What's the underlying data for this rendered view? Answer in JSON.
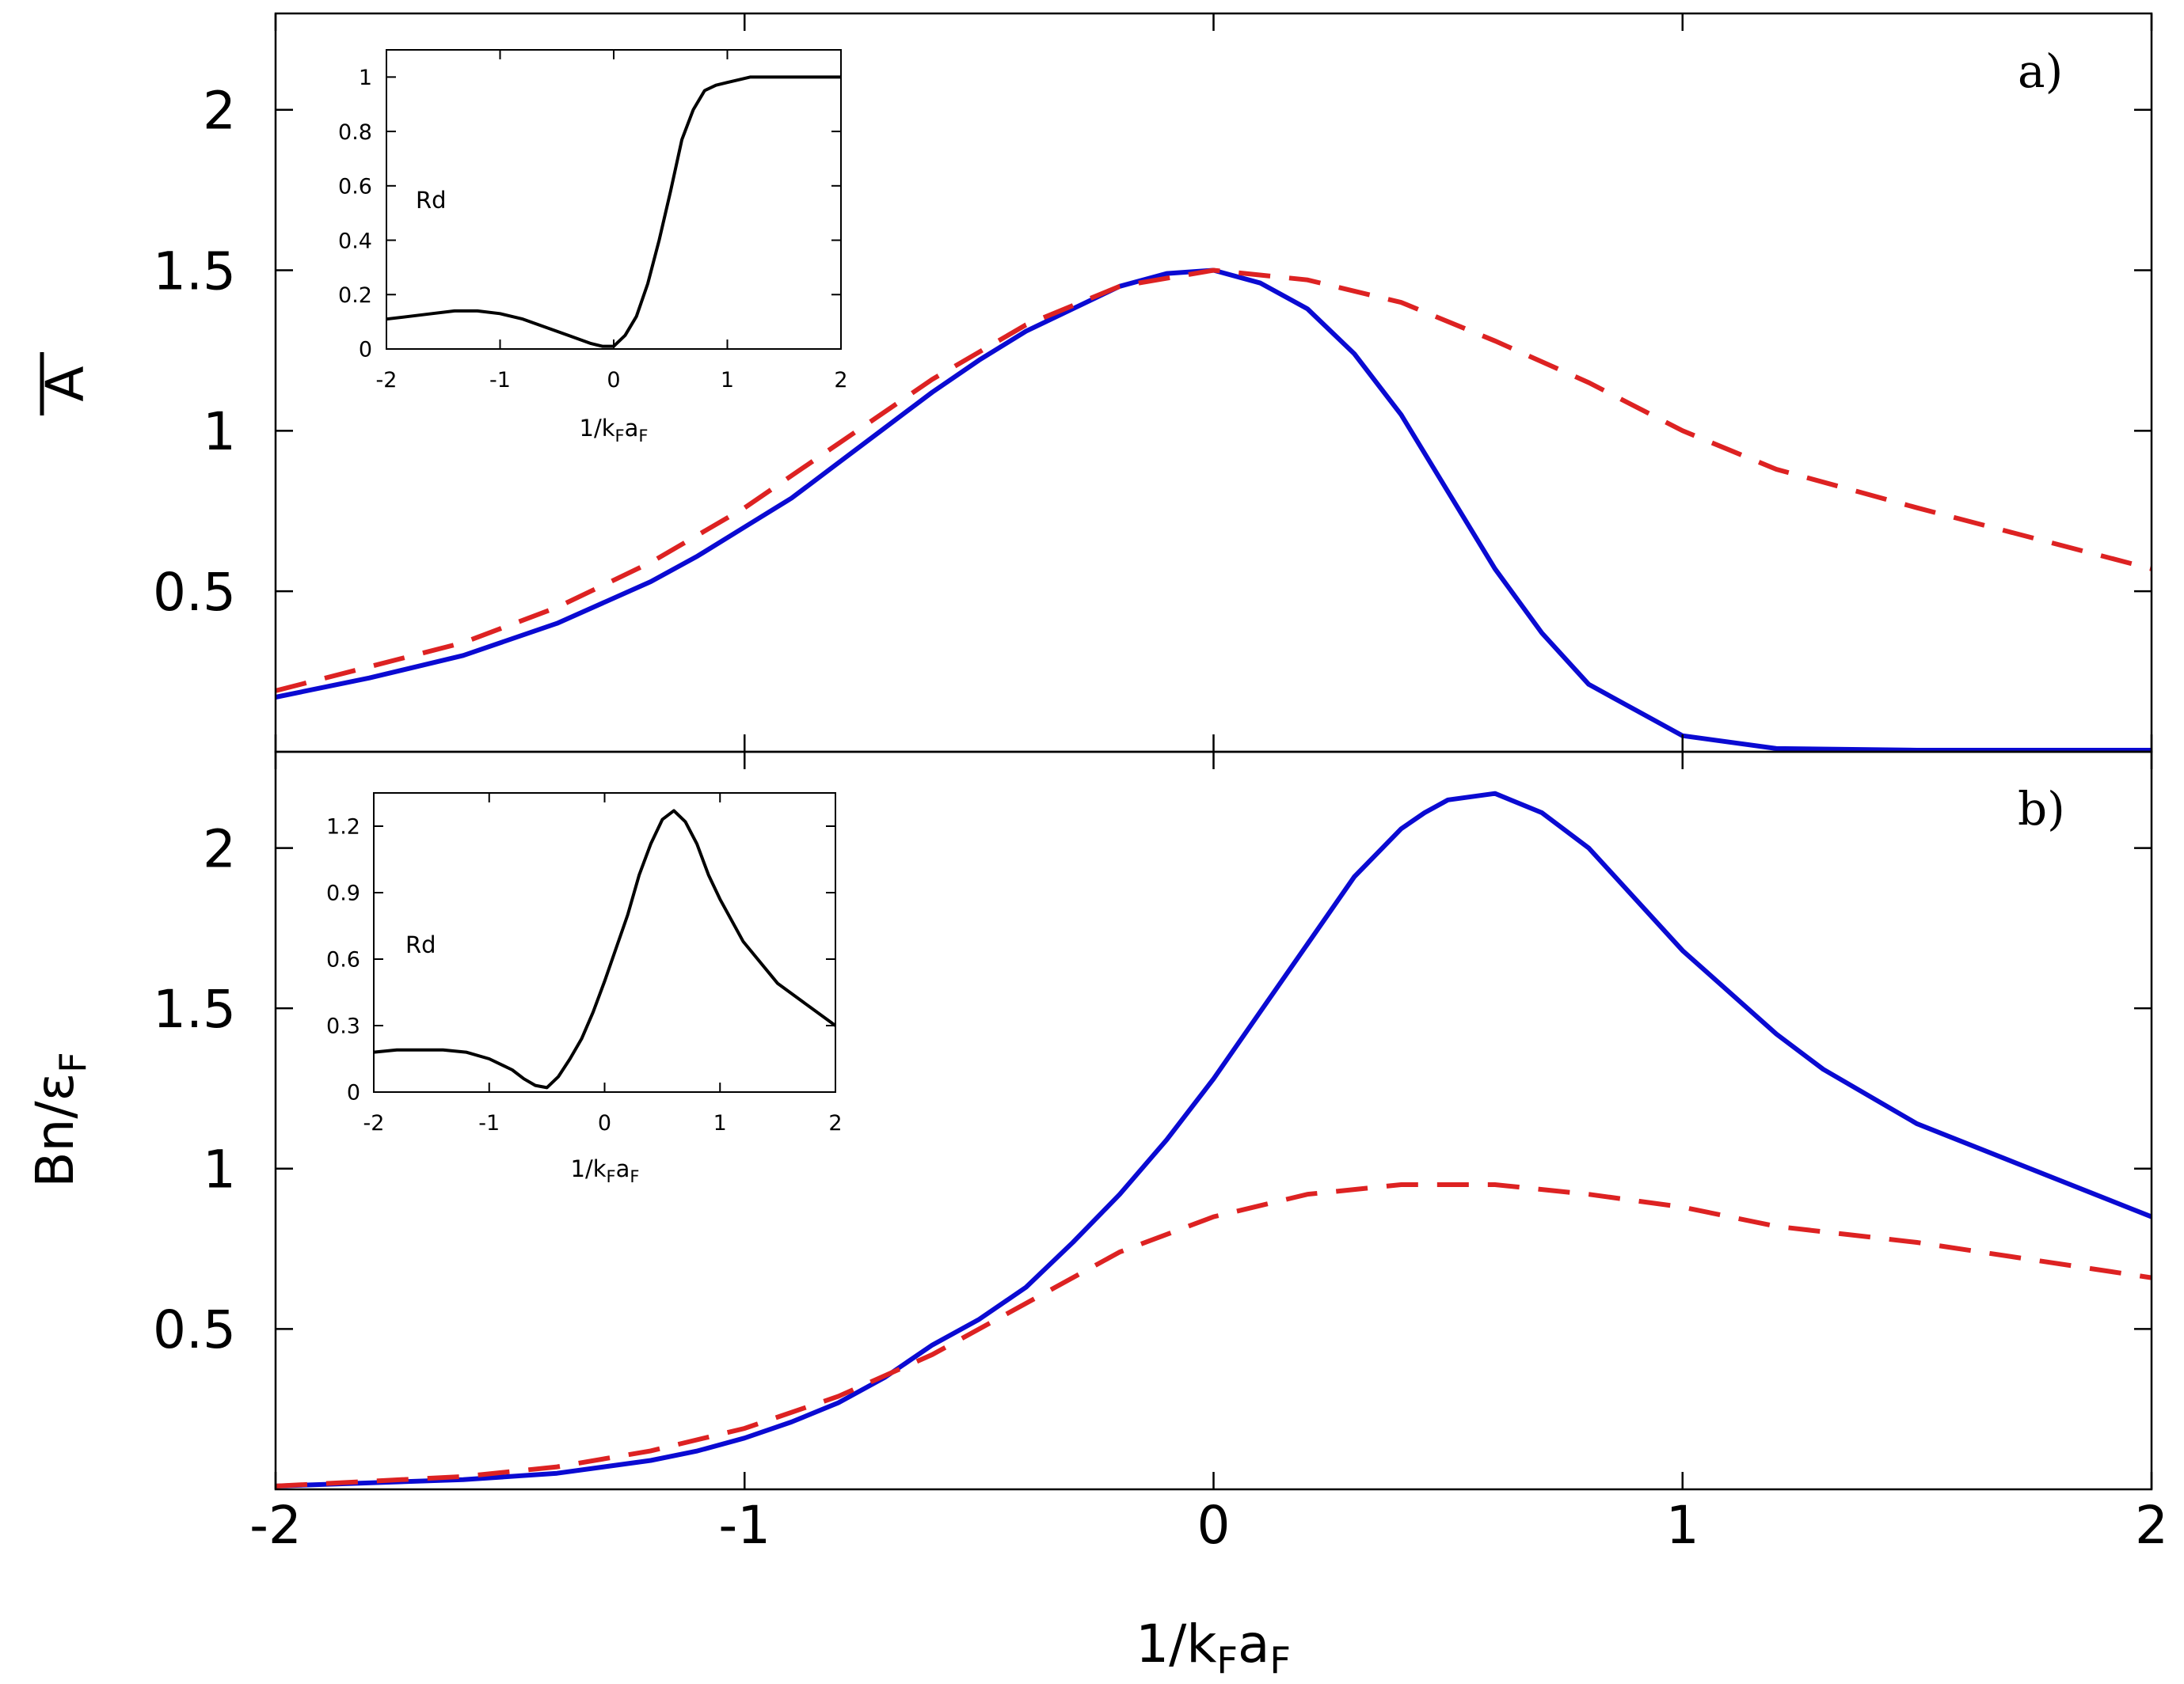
{
  "colors": {
    "blue": "#0a0ad2",
    "red": "#dd2222",
    "black": "#000000"
  },
  "x_label": {
    "pre": "1/k",
    "sub1": "F",
    "mid": "a",
    "sub2": "F"
  },
  "chart_data": [
    {
      "id": "panel_a",
      "type": "line",
      "panel_label": "a)",
      "ylabel": "A",
      "ylabel_overline": true,
      "xlim": [
        -2,
        2
      ],
      "ylim": [
        0,
        2.3
      ],
      "xticks": [
        -2,
        -1,
        0,
        1,
        2
      ],
      "yticks": [
        0.5,
        1,
        1.5,
        2
      ],
      "ytick_labels": [
        "0.5",
        "1",
        "1.5",
        "2"
      ],
      "series": [
        {
          "name": "solid",
          "style": "solid",
          "color": "#0a0ad2",
          "x": [
            -2,
            -1.8,
            -1.6,
            -1.4,
            -1.2,
            -1.1,
            -1,
            -0.9,
            -0.8,
            -0.7,
            -0.6,
            -0.5,
            -0.4,
            -0.3,
            -0.2,
            -0.1,
            0,
            0.1,
            0.2,
            0.3,
            0.4,
            0.5,
            0.6,
            0.7,
            0.8,
            0.9,
            1,
            1.2,
            1.5,
            2
          ],
          "y": [
            0.17,
            0.23,
            0.3,
            0.4,
            0.53,
            0.61,
            0.7,
            0.79,
            0.9,
            1.01,
            1.12,
            1.22,
            1.31,
            1.38,
            1.45,
            1.49,
            1.5,
            1.46,
            1.38,
            1.24,
            1.05,
            0.81,
            0.57,
            0.37,
            0.21,
            0.13,
            0.05,
            0.01,
            0.005,
            0.005
          ]
        },
        {
          "name": "dashed",
          "style": "dashed",
          "color": "#dd2222",
          "x": [
            -2,
            -1.6,
            -1.4,
            -1.2,
            -1,
            -0.8,
            -0.6,
            -0.4,
            -0.2,
            0,
            0.2,
            0.4,
            0.6,
            0.8,
            1,
            1.2,
            1.5,
            2
          ],
          "y": [
            0.19,
            0.34,
            0.45,
            0.59,
            0.76,
            0.96,
            1.16,
            1.33,
            1.45,
            1.5,
            1.47,
            1.4,
            1.28,
            1.15,
            1.0,
            0.88,
            0.76,
            0.57
          ]
        }
      ]
    },
    {
      "id": "panel_b",
      "type": "line",
      "panel_label": "b)",
      "ylabel": "Bn/ε",
      "ylabel_sub": "F",
      "xlim": [
        -2,
        2
      ],
      "ylim": [
        0,
        2.3
      ],
      "xticks": [
        -2,
        -1,
        0,
        1,
        2
      ],
      "xtick_labels": [
        "-2",
        "-1",
        "0",
        "1",
        "2"
      ],
      "yticks": [
        0.5,
        1,
        1.5,
        2
      ],
      "ytick_labels": [
        "0.5",
        "1",
        "1.5",
        "2"
      ],
      "series": [
        {
          "name": "solid",
          "style": "solid",
          "color": "#0a0ad2",
          "x": [
            -2,
            -1.6,
            -1.4,
            -1.2,
            -1.1,
            -1,
            -0.9,
            -0.8,
            -0.7,
            -0.6,
            -0.5,
            -0.4,
            -0.3,
            -0.2,
            -0.1,
            0,
            0.1,
            0.2,
            0.3,
            0.4,
            0.45,
            0.5,
            0.6,
            0.7,
            0.8,
            1,
            1.2,
            1.3,
            1.5,
            2
          ],
          "y": [
            0.01,
            0.03,
            0.05,
            0.09,
            0.12,
            0.16,
            0.21,
            0.27,
            0.35,
            0.45,
            0.53,
            0.63,
            0.77,
            0.92,
            1.09,
            1.28,
            1.49,
            1.7,
            1.91,
            2.06,
            2.11,
            2.15,
            2.17,
            2.11,
            2.0,
            1.68,
            1.42,
            1.31,
            1.14,
            0.85
          ]
        },
        {
          "name": "dashed",
          "style": "dashed",
          "color": "#dd2222",
          "x": [
            -2,
            -1.6,
            -1.4,
            -1.2,
            -1,
            -0.8,
            -0.6,
            -0.4,
            -0.2,
            0,
            0.2,
            0.4,
            0.6,
            0.8,
            1,
            1.2,
            1.5,
            2
          ],
          "y": [
            0.01,
            0.04,
            0.07,
            0.12,
            0.19,
            0.29,
            0.42,
            0.58,
            0.74,
            0.85,
            0.92,
            0.95,
            0.95,
            0.92,
            0.88,
            0.82,
            0.77,
            0.66
          ]
        }
      ]
    },
    {
      "id": "inset_a",
      "type": "line",
      "ylabel": "Rd",
      "xlim": [
        -2,
        2
      ],
      "ylim": [
        0,
        1.1
      ],
      "xticks": [
        -2,
        -1,
        0,
        1,
        2
      ],
      "xtick_labels": [
        "-2",
        "-1",
        "0",
        "1",
        "2"
      ],
      "yticks": [
        0,
        0.2,
        0.4,
        0.6,
        0.8,
        1
      ],
      "ytick_labels": [
        "0",
        "0.2",
        "0.4",
        "0.6",
        "0.8",
        "1"
      ],
      "series": [
        {
          "name": "Rd",
          "style": "solid",
          "color": "#000000",
          "x": [
            -2,
            -1.8,
            -1.6,
            -1.4,
            -1.2,
            -1.0,
            -0.8,
            -0.6,
            -0.4,
            -0.2,
            -0.1,
            0,
            0.1,
            0.2,
            0.3,
            0.4,
            0.5,
            0.6,
            0.7,
            0.8,
            0.9,
            1.0,
            1.1,
            1.2,
            1.4,
            2
          ],
          "y": [
            0.11,
            0.12,
            0.13,
            0.14,
            0.14,
            0.13,
            0.11,
            0.08,
            0.05,
            0.02,
            0.01,
            0.01,
            0.05,
            0.12,
            0.24,
            0.4,
            0.58,
            0.77,
            0.88,
            0.95,
            0.97,
            0.98,
            0.99,
            1.0,
            1.0,
            1.0
          ]
        }
      ]
    },
    {
      "id": "inset_b",
      "type": "line",
      "ylabel": "Rd",
      "xlim": [
        -2,
        2
      ],
      "ylim": [
        0,
        1.35
      ],
      "xticks": [
        -2,
        -1,
        0,
        1,
        2
      ],
      "xtick_labels": [
        "-2",
        "-1",
        "0",
        "1",
        "2"
      ],
      "yticks": [
        0,
        0.3,
        0.6,
        0.9,
        1.2
      ],
      "ytick_labels": [
        "0",
        "0.3",
        "0.6",
        "0.9",
        "1.2"
      ],
      "series": [
        {
          "name": "Rd",
          "style": "solid",
          "color": "#000000",
          "x": [
            -2,
            -1.8,
            -1.6,
            -1.4,
            -1.2,
            -1.0,
            -0.8,
            -0.7,
            -0.6,
            -0.5,
            -0.4,
            -0.3,
            -0.2,
            -0.1,
            0,
            0.1,
            0.2,
            0.3,
            0.4,
            0.5,
            0.6,
            0.7,
            0.8,
            0.9,
            1.0,
            1.2,
            1.5,
            2
          ],
          "y": [
            0.18,
            0.19,
            0.19,
            0.19,
            0.18,
            0.15,
            0.1,
            0.06,
            0.03,
            0.02,
            0.07,
            0.15,
            0.24,
            0.36,
            0.5,
            0.65,
            0.8,
            0.98,
            1.12,
            1.23,
            1.27,
            1.22,
            1.12,
            0.98,
            0.87,
            0.68,
            0.49,
            0.3
          ]
        }
      ]
    }
  ]
}
